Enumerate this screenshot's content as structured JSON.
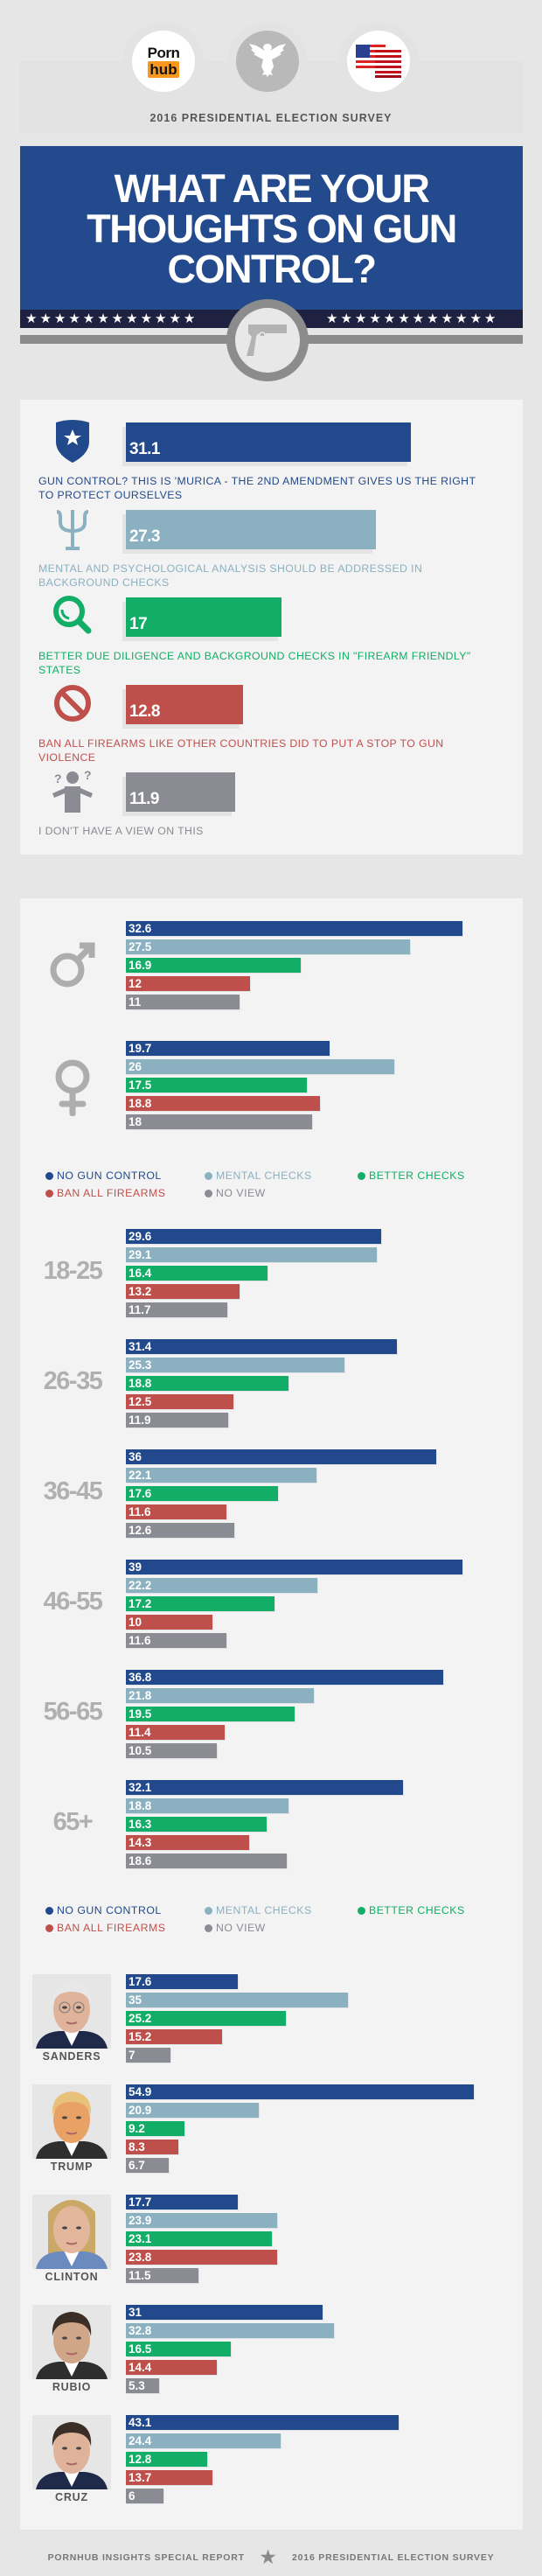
{
  "header": {
    "logo_top": "Porn",
    "logo_bottom": "hub",
    "subtitle": "2016 PRESIDENTIAL ELECTION SURVEY",
    "title_lines": [
      "WHAT ARE YOUR",
      "THOUGHTS ON GUN",
      "CONTROL?"
    ]
  },
  "colors": {
    "no_gun_control": "#21498b",
    "mental_checks": "#8bb0c0",
    "better_checks": "#12ad66",
    "ban_all_firearms": "#bf4f4b",
    "no_view": "#8a8b93",
    "brand_orange": "#f7971d"
  },
  "legend": [
    {
      "label": "NO GUN CONTROL",
      "color": "#21498b"
    },
    {
      "label": "MENTAL CHECKS",
      "color": "#8bb0c0"
    },
    {
      "label": "BETTER CHECKS",
      "color": "#12ad66"
    },
    {
      "label": "BAN ALL FIREARMS",
      "color": "#bf4f4b"
    },
    {
      "label": "NO VIEW",
      "color": "#8a8b93"
    }
  ],
  "chart_data": [
    {
      "type": "bar",
      "orientation": "horizontal",
      "categories": [
        "GUN CONTROL? THIS IS 'MURICA - THE 2ND AMENDMENT GIVES US THE RIGHT TO PROTECT OURSELVES",
        "MENTAL AND PSYCHOLOGICAL ANALYSIS SHOULD BE ADDRESSED IN BACKGROUND CHECKS",
        "BETTER DUE DILIGENCE AND BACKGROUND CHECKS IN \"FIREARM FRIENDLY\" STATES",
        "BAN ALL FIREARMS LIKE OTHER COUNTRIES DID TO PUT A STOP TO GUN VIOLENCE",
        "I DON'T HAVE A VIEW ON THIS"
      ],
      "icons": [
        "shield-star-icon",
        "psi-icon",
        "magnifier-icon",
        "prohibited-icon",
        "confused-person-icon"
      ],
      "values": [
        31.1,
        27.3,
        17,
        12.8,
        11.9
      ]
    },
    {
      "type": "bar",
      "orientation": "horizontal",
      "series": [
        "NO GUN CONTROL",
        "MENTAL CHECKS",
        "BETTER CHECKS",
        "BAN ALL FIREARMS",
        "NO VIEW"
      ],
      "groups": [
        {
          "icon": "male-symbol-icon",
          "values": [
            32.6,
            27.5,
            16.9,
            12,
            11
          ]
        },
        {
          "icon": "female-symbol-icon",
          "values": [
            19.7,
            26,
            17.5,
            18.8,
            18
          ]
        }
      ]
    },
    {
      "type": "bar",
      "orientation": "horizontal",
      "series": [
        "NO GUN CONTROL",
        "MENTAL CHECKS",
        "BETTER CHECKS",
        "BAN ALL FIREARMS",
        "NO VIEW"
      ],
      "groups": [
        {
          "label": "18-25",
          "values": [
            29.6,
            29.1,
            16.4,
            13.2,
            11.7
          ]
        },
        {
          "label": "26-35",
          "values": [
            31.4,
            25.3,
            18.8,
            12.5,
            11.9
          ]
        },
        {
          "label": "36-45",
          "values": [
            36,
            22.1,
            17.6,
            11.6,
            12.6
          ]
        },
        {
          "label": "46-55",
          "values": [
            39,
            22.2,
            17.2,
            10,
            11.6
          ]
        },
        {
          "label": "56-65",
          "values": [
            36.8,
            21.8,
            19.5,
            11.4,
            10.5
          ]
        },
        {
          "label": "65+",
          "values": [
            32.1,
            18.8,
            16.3,
            14.3,
            18.6
          ]
        }
      ]
    },
    {
      "type": "bar",
      "orientation": "horizontal",
      "series": [
        "NO GUN CONTROL",
        "MENTAL CHECKS",
        "BETTER CHECKS",
        "BAN ALL FIREARMS",
        "NO VIEW"
      ],
      "groups": [
        {
          "label": "SANDERS",
          "values": [
            17.6,
            35,
            25.2,
            15.2,
            7
          ]
        },
        {
          "label": "TRUMP",
          "values": [
            54.9,
            20.9,
            9.2,
            8.3,
            6.7
          ]
        },
        {
          "label": "CLINTON",
          "values": [
            17.7,
            23.9,
            23.1,
            23.8,
            11.5
          ]
        },
        {
          "label": "RUBIO",
          "values": [
            31,
            32.8,
            16.5,
            14.4,
            5.3
          ]
        },
        {
          "label": "CRUZ",
          "values": [
            43.1,
            24.4,
            12.8,
            13.7,
            6
          ]
        }
      ]
    }
  ],
  "footer": {
    "left": "PORNHUB INSIGHTS SPECIAL REPORT",
    "right": "2016 PRESIDENTIAL ELECTION SURVEY"
  }
}
